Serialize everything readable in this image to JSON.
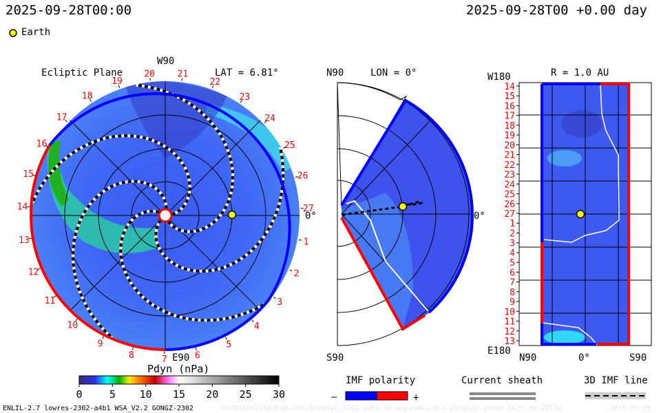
{
  "header": {
    "left_time": "2025-09-28T00:00",
    "right_time": "2025-09-28T00 +0.00 day"
  },
  "legend_top": {
    "earth_label": "Earth",
    "earth_color": "#ffff00"
  },
  "ecliptic": {
    "title": "Ecliptic Plane",
    "lat_label": "LAT = 6.81°",
    "top_label": "W90",
    "bottom_label": "E90",
    "right_label": "0°",
    "rim_labels": [
      "27",
      "1",
      "2",
      "3",
      "4",
      "5",
      "6",
      "7",
      "8",
      "9",
      "10",
      "11",
      "12",
      "13",
      "14",
      "15",
      "16",
      "17",
      "18",
      "19",
      "20",
      "21",
      "22",
      "23",
      "24",
      "25",
      "26"
    ]
  },
  "meridional": {
    "title": "LON = 0°",
    "top_label": "N90",
    "bottom_label": "S90",
    "right_label": "0°"
  },
  "radial": {
    "title": "R = 1.0 AU",
    "top_left_label": "W180",
    "bottom_left_label": "E180",
    "x_labels": [
      "N90",
      "0°",
      "S90"
    ],
    "row_labels": [
      "14",
      "15",
      "16",
      "17",
      "18",
      "19",
      "20",
      "21",
      "22",
      "23",
      "24",
      "25",
      "26",
      "27",
      "1",
      "2",
      "3",
      "4",
      "5",
      "6",
      "7",
      "8",
      "9",
      "10",
      "11",
      "12",
      "13"
    ]
  },
  "colorbar": {
    "title": "Pdyn (nPa)",
    "ticks": [
      "0",
      "5",
      "10",
      "15",
      "20",
      "25",
      "30"
    ],
    "range": [
      0,
      30
    ]
  },
  "legends": {
    "imf_title": "IMF polarity",
    "imf_minus": "–",
    "imf_plus": "+",
    "imf_colors": {
      "negative": "#0000ff",
      "positive": "#ff0000"
    },
    "sheath_title": "Current sheath",
    "imf_line_title": "3D IMF line"
  },
  "footer": {
    "model": "ENLIL-2.7 lowres-2302-a4b1 WSA_V2.2 GONGZ-2302",
    "run_id": "UNIQUE0929163618/256x30x90x1.2302-a4b1.16-mcp1umn1cd-1.g53q5d2.gongz-2025-09-28T00",
    "date": "2025-09-29"
  }
}
